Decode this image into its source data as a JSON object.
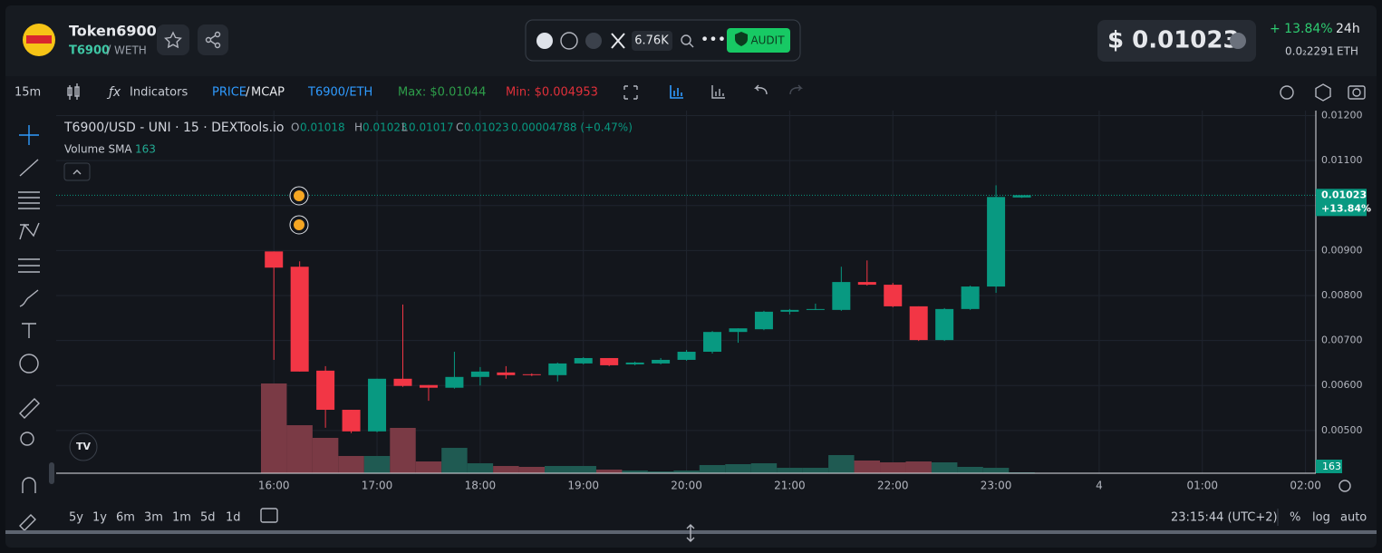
{
  "header": {
    "token_name": "Token6900",
    "symbol": "T6900",
    "quote_separator": "/",
    "quote": "WETH"
  },
  "social": {
    "followers": "6.76K",
    "audit": "AUDIT"
  },
  "price": {
    "usd": "$ 0.01023",
    "change": "+ 13.84%",
    "period": "24h",
    "eth": "0.0₂2291",
    "eth_unit": "ETH"
  },
  "toolbar": {
    "interval": "15m",
    "indicators": "Indicators",
    "price": "PRICE",
    "separator": "/",
    "mcap": "MCAP",
    "pair": "T6900/ETH",
    "max": "Max: $0.01044",
    "min": "Min: $0.004953"
  },
  "legend": {
    "title": "T6900/USD - UNI · 15 · DEXTools.io",
    "o_label": "O",
    "o": "0.01018",
    "h_label": "H",
    "h": "0.01023",
    "l_label": "L",
    "l": "0.01017",
    "c_label": "C",
    "c": "0.01023",
    "change": "0.00004788 (+0.47%)",
    "volume_name": "Volume SMA",
    "volume_value": "163"
  },
  "price_tag": {
    "value": "0.01023",
    "change": "+13.84%"
  },
  "volume_tag": "163",
  "footer": {
    "ranges": [
      "5y",
      "1y",
      "6m",
      "3m",
      "1m",
      "5d",
      "1d"
    ],
    "time": "23:15:44 (UTC+2)",
    "options": [
      "%",
      "log",
      "auto"
    ]
  },
  "chart_data": {
    "type": "candlestick",
    "x": [
      16,
      16.25,
      16.5,
      16.75,
      17,
      17.25,
      17.5,
      17.75,
      18,
      18.25,
      18.5,
      18.75,
      19,
      19.25,
      19.5,
      19.75,
      20,
      20.25,
      20.5,
      20.75,
      21,
      21.25,
      21.5,
      21.75,
      22,
      22.25,
      22.5,
      22.75,
      23,
      23.25
    ],
    "open": [
      0.00898,
      0.00864,
      0.00633,
      0.00546,
      0.00498,
      0.00615,
      0.00601,
      0.00595,
      0.00619,
      0.00629,
      0.00625,
      0.00623,
      0.00649,
      0.00661,
      0.00647,
      0.00649,
      0.00657,
      0.00675,
      0.00719,
      0.00725,
      0.00764,
      0.00768,
      0.00768,
      0.0083,
      0.00824,
      0.00776,
      0.00701,
      0.0077,
      0.0082,
      0.01018
    ],
    "high": [
      0.00898,
      0.00876,
      0.00643,
      0.00546,
      0.00615,
      0.0078,
      0.00601,
      0.00675,
      0.00641,
      0.00643,
      0.00627,
      0.00651,
      0.00663,
      0.00661,
      0.00653,
      0.00661,
      0.00679,
      0.00721,
      0.00727,
      0.00766,
      0.0077,
      0.00782,
      0.00864,
      0.00878,
      0.00828,
      0.00776,
      0.00772,
      0.00822,
      0.01045,
      0.01023
    ],
    "low": [
      0.00657,
      0.00631,
      0.00506,
      0.00494,
      0.00496,
      0.00597,
      0.00566,
      0.00593,
      0.006,
      0.00615,
      0.00621,
      0.00609,
      0.00647,
      0.00643,
      0.00645,
      0.00647,
      0.00655,
      0.00671,
      0.00695,
      0.00723,
      0.00758,
      0.00768,
      0.00766,
      0.00822,
      0.00774,
      0.00699,
      0.00699,
      0.00768,
      0.00806,
      0.01017
    ],
    "close": [
      0.00862,
      0.00631,
      0.00546,
      0.00498,
      0.00615,
      0.00599,
      0.00595,
      0.00619,
      0.00631,
      0.00623,
      0.00623,
      0.00649,
      0.00661,
      0.00645,
      0.00651,
      0.00657,
      0.00675,
      0.00719,
      0.00727,
      0.00764,
      0.00768,
      0.0077,
      0.0083,
      0.00824,
      0.00776,
      0.00701,
      0.0077,
      0.0082,
      0.01019,
      0.01023
    ],
    "volume": [
      2020,
      1081,
      796,
      388,
      388,
      1020,
      265,
      571,
      224,
      163,
      143,
      163,
      163,
      82,
      61,
      41,
      61,
      184,
      204,
      224,
      122,
      122,
      408,
      286,
      245,
      265,
      245,
      143,
      122,
      20
    ],
    "up_color": "#089981",
    "down_color": "#f23645",
    "volume_up_color": "#1f5a52",
    "volume_down_color": "#7a3a45",
    "xlim": [
      13.89,
      26.1
    ],
    "xticks": [
      {
        "value": 16,
        "label": "16:00"
      },
      {
        "value": 17,
        "label": "17:00"
      },
      {
        "value": 18,
        "label": "18:00"
      },
      {
        "value": 19,
        "label": "19:00"
      },
      {
        "value": 20,
        "label": "20:00"
      },
      {
        "value": 21,
        "label": "21:00"
      },
      {
        "value": 22,
        "label": "22:00"
      },
      {
        "value": 23,
        "label": "23:00"
      },
      {
        "value": 24,
        "label": "4"
      },
      {
        "value": 25,
        "label": "01:00"
      },
      {
        "value": 26,
        "label": "02:00"
      }
    ],
    "ylim": [
      0.00405,
      0.01203
    ],
    "yticks": [
      {
        "value": 0.005,
        "label": "0.00500"
      },
      {
        "value": 0.006,
        "label": "0.00600"
      },
      {
        "value": 0.007,
        "label": "0.00700"
      },
      {
        "value": 0.008,
        "label": "0.00800"
      },
      {
        "value": 0.009,
        "label": "0.00900"
      },
      {
        "value": 0.01,
        "label": "0.01000"
      },
      {
        "value": 0.011,
        "label": "0.01100"
      },
      {
        "value": 0.012,
        "label": "0.01200"
      }
    ],
    "y2lim": [
      0,
      8080
    ],
    "grid": true
  }
}
